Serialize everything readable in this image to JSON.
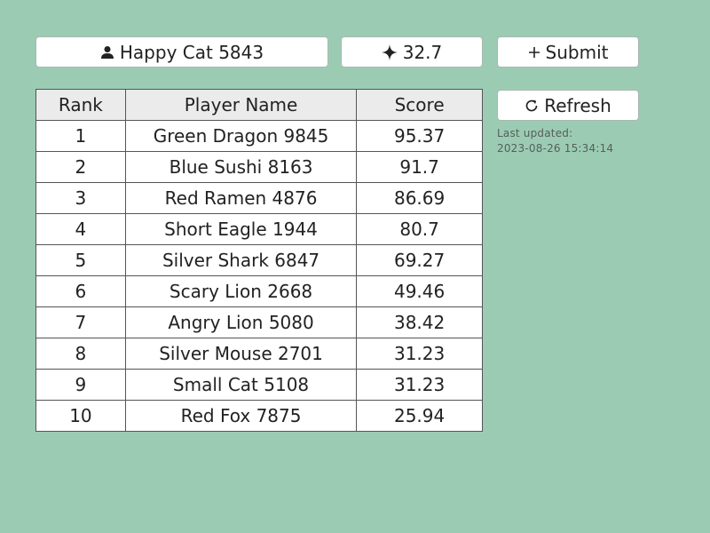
{
  "player": {
    "name": "Happy Cat 5843",
    "icon": "person-icon"
  },
  "current_score": {
    "value": "32.7",
    "icon": "sparkle-icon"
  },
  "submit": {
    "label": "Submit",
    "icon": "plus-icon"
  },
  "refresh": {
    "label": "Refresh",
    "icon": "refresh-icon"
  },
  "last_updated": {
    "label": "Last updated:",
    "timestamp": "2023-08-26 15:34:14"
  },
  "leaderboard": {
    "headers": {
      "rank": "Rank",
      "name": "Player Name",
      "score": "Score"
    },
    "rows": [
      {
        "rank": "1",
        "name": "Green Dragon 9845",
        "score": "95.37"
      },
      {
        "rank": "2",
        "name": "Blue Sushi 8163",
        "score": "91.7"
      },
      {
        "rank": "3",
        "name": "Red Ramen 4876",
        "score": "86.69"
      },
      {
        "rank": "4",
        "name": "Short Eagle 1944",
        "score": "80.7"
      },
      {
        "rank": "5",
        "name": "Silver Shark 6847",
        "score": "69.27"
      },
      {
        "rank": "6",
        "name": "Scary Lion 2668",
        "score": "49.46"
      },
      {
        "rank": "7",
        "name": "Angry Lion 5080",
        "score": "38.42"
      },
      {
        "rank": "8",
        "name": "Silver Mouse 2701",
        "score": "31.23"
      },
      {
        "rank": "9",
        "name": "Small Cat 5108",
        "score": "31.23"
      },
      {
        "rank": "10",
        "name": "Red Fox 7875",
        "score": "25.94"
      }
    ]
  },
  "colors": {
    "background": "#9ccbb4",
    "button_bg": "#ffffff",
    "header_bg": "#ebebeb"
  }
}
